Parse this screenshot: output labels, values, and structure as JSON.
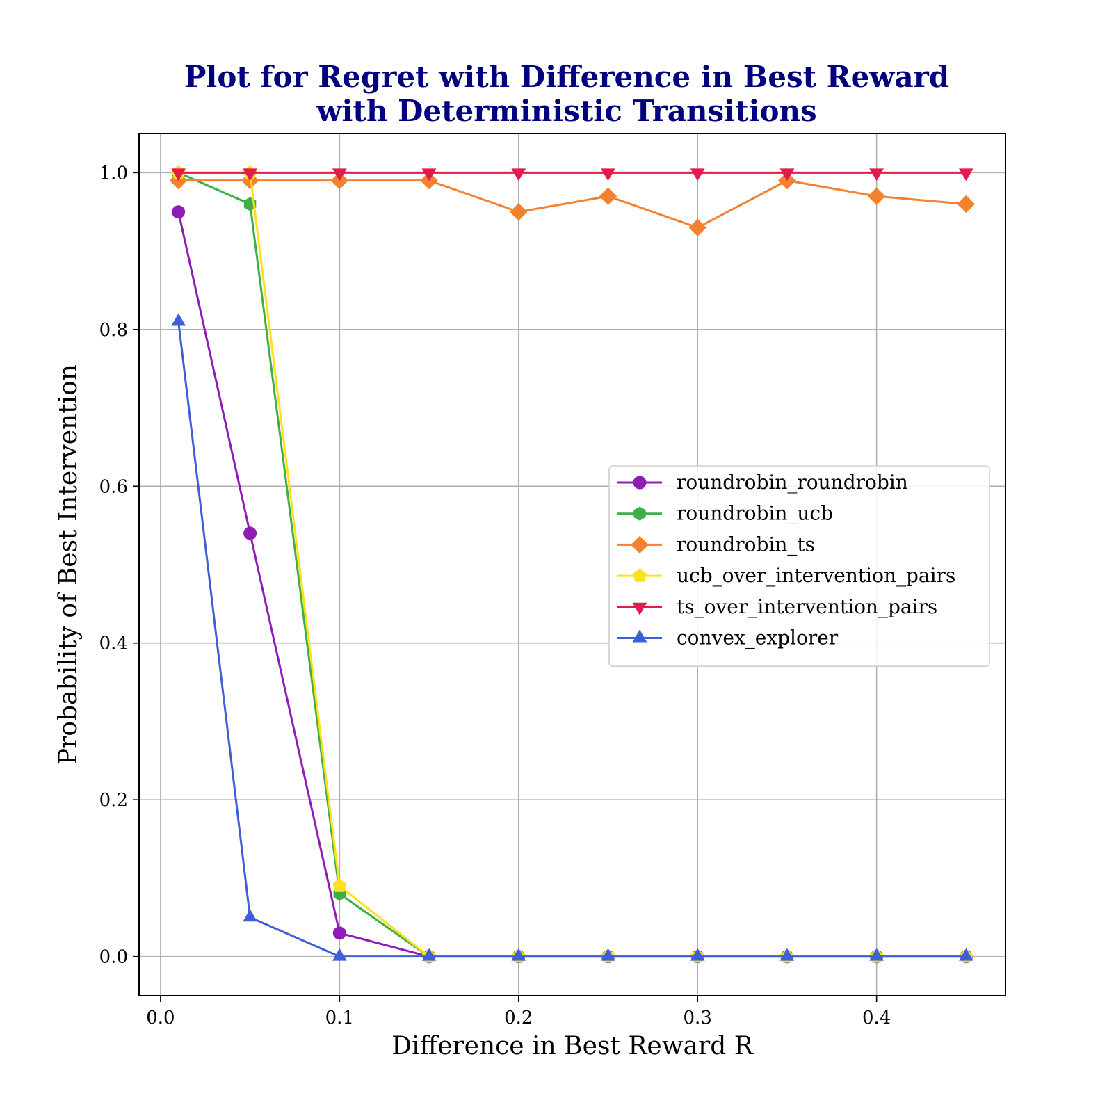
{
  "chart_data": {
    "type": "line",
    "title": [
      "Plot for Regret with Difference in Best Reward",
      "with Deterministic Transitions"
    ],
    "xlabel": "Difference in Best Reward R",
    "ylabel": "Probability of Best Intervention",
    "xlim": [
      -0.012,
      0.472
    ],
    "ylim": [
      -0.05,
      1.05
    ],
    "xticks": [
      0.0,
      0.1,
      0.2,
      0.3,
      0.4
    ],
    "xtick_labels": [
      "0.0",
      "0.1",
      "0.2",
      "0.3",
      "0.4"
    ],
    "yticks": [
      0.0,
      0.2,
      0.4,
      0.6,
      0.8,
      1.0
    ],
    "ytick_labels": [
      "0.0",
      "0.2",
      "0.4",
      "0.6",
      "0.8",
      "1.0"
    ],
    "grid": true,
    "legend_position": "center-right",
    "x": [
      0.01,
      0.05,
      0.1,
      0.15,
      0.2,
      0.25,
      0.3,
      0.35,
      0.4,
      0.45
    ],
    "series": [
      {
        "name": "roundrobin_roundrobin",
        "color": "#8e1cb5",
        "marker": "circle",
        "values": [
          0.95,
          0.54,
          0.03,
          0.0,
          0.0,
          0.0,
          0.0,
          0.0,
          0.0,
          0.0
        ]
      },
      {
        "name": "roundrobin_ucb",
        "color": "#3cb043",
        "marker": "hexagon",
        "values": [
          1.0,
          0.96,
          0.08,
          0.0,
          0.0,
          0.0,
          0.0,
          0.0,
          0.0,
          0.0
        ]
      },
      {
        "name": "roundrobin_ts",
        "color": "#f4812f",
        "marker": "diamond",
        "values": [
          0.99,
          0.99,
          0.99,
          0.99,
          0.95,
          0.97,
          0.93,
          0.99,
          0.97,
          0.96
        ]
      },
      {
        "name": "ucb_over_intervention_pairs",
        "color": "#ffe01b",
        "marker": "pentagon",
        "values": [
          1.0,
          1.0,
          0.09,
          0.0,
          0.0,
          0.0,
          0.0,
          0.0,
          0.0,
          0.0
        ]
      },
      {
        "name": "ts_over_intervention_pairs",
        "color": "#e31b4b",
        "marker": "triangle-down",
        "values": [
          1.0,
          1.0,
          1.0,
          1.0,
          1.0,
          1.0,
          1.0,
          1.0,
          1.0,
          1.0
        ]
      },
      {
        "name": "convex_explorer",
        "color": "#3f5fd8",
        "marker": "triangle-up",
        "values": [
          0.81,
          0.05,
          0.0,
          0.0,
          0.0,
          0.0,
          0.0,
          0.0,
          0.0,
          0.0
        ]
      }
    ]
  }
}
